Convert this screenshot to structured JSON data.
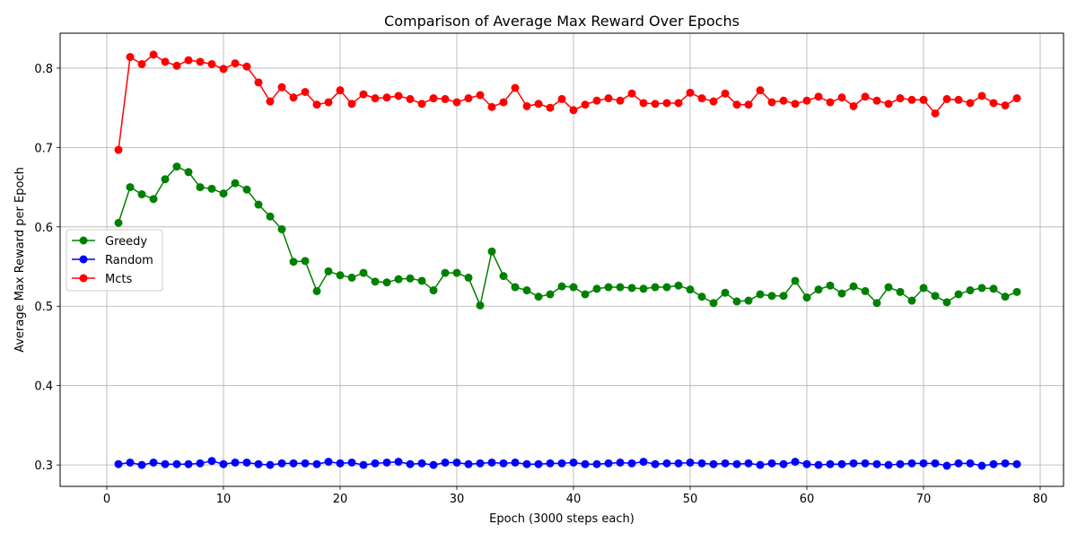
{
  "chart_data": {
    "type": "line",
    "title": "Comparison of Average Max Reward Over Epochs",
    "xlabel": "Epoch (3000 steps each)",
    "ylabel": "Average Max Reward per Epoch",
    "xlim": [
      -4,
      82
    ],
    "ylim": [
      0.273,
      0.844
    ],
    "xticks": [
      0,
      10,
      20,
      30,
      40,
      50,
      60,
      70,
      80
    ],
    "xtick_labels": [
      "0",
      "10",
      "20",
      "30",
      "40",
      "50",
      "60",
      "70",
      "80"
    ],
    "yticks": [
      0.3,
      0.4,
      0.5,
      0.6,
      0.7,
      0.8
    ],
    "ytick_labels": [
      "0.3",
      "0.4",
      "0.5",
      "0.6",
      "0.7",
      "0.8"
    ],
    "grid": true,
    "legend_position": "center-left",
    "x": [
      1,
      2,
      3,
      4,
      5,
      6,
      7,
      8,
      9,
      10,
      11,
      12,
      13,
      14,
      15,
      16,
      17,
      18,
      19,
      20,
      21,
      22,
      23,
      24,
      25,
      26,
      27,
      28,
      29,
      30,
      31,
      32,
      33,
      34,
      35,
      36,
      37,
      38,
      39,
      40,
      41,
      42,
      43,
      44,
      45,
      46,
      47,
      48,
      49,
      50,
      51,
      52,
      53,
      54,
      55,
      56,
      57,
      58,
      59,
      60,
      61,
      62,
      63,
      64,
      65,
      66,
      67,
      68,
      69,
      70,
      71,
      72,
      73,
      74,
      75,
      76,
      77,
      78
    ],
    "series": [
      {
        "name": "Greedy",
        "color": "#008000",
        "values": [
          0.605,
          0.65,
          0.641,
          0.635,
          0.66,
          0.676,
          0.669,
          0.65,
          0.648,
          0.642,
          0.655,
          0.647,
          0.628,
          0.613,
          0.597,
          0.556,
          0.557,
          0.519,
          0.544,
          0.539,
          0.536,
          0.542,
          0.531,
          0.53,
          0.534,
          0.535,
          0.532,
          0.52,
          0.542,
          0.542,
          0.536,
          0.501,
          0.569,
          0.538,
          0.524,
          0.52,
          0.512,
          0.515,
          0.525,
          0.524,
          0.515,
          0.522,
          0.524,
          0.524,
          0.523,
          0.522,
          0.524,
          0.524,
          0.526,
          0.521,
          0.512,
          0.504,
          0.517,
          0.506,
          0.507,
          0.515,
          0.513,
          0.513,
          0.532,
          0.511,
          0.521,
          0.526,
          0.516,
          0.525,
          0.519,
          0.504,
          0.524,
          0.518,
          0.507,
          0.523,
          0.513,
          0.505,
          0.515,
          0.52,
          0.523,
          0.522,
          0.512,
          0.518
        ]
      },
      {
        "name": "Random",
        "color": "#0000ff",
        "values": [
          0.301,
          0.303,
          0.3,
          0.303,
          0.301,
          0.301,
          0.301,
          0.302,
          0.305,
          0.301,
          0.303,
          0.303,
          0.301,
          0.3,
          0.302,
          0.302,
          0.302,
          0.301,
          0.304,
          0.302,
          0.303,
          0.3,
          0.302,
          0.303,
          0.304,
          0.301,
          0.302,
          0.3,
          0.303,
          0.303,
          0.301,
          0.302,
          0.303,
          0.302,
          0.303,
          0.301,
          0.301,
          0.302,
          0.302,
          0.303,
          0.301,
          0.301,
          0.302,
          0.303,
          0.302,
          0.304,
          0.301,
          0.302,
          0.302,
          0.303,
          0.302,
          0.301,
          0.302,
          0.301,
          0.302,
          0.3,
          0.302,
          0.301,
          0.304,
          0.301,
          0.3,
          0.301,
          0.301,
          0.302,
          0.302,
          0.301,
          0.3,
          0.301,
          0.302,
          0.302,
          0.302,
          0.299,
          0.302,
          0.302,
          0.299,
          0.301,
          0.302,
          0.301
        ]
      },
      {
        "name": "Mcts",
        "color": "#ff0000",
        "values": [
          0.697,
          0.814,
          0.805,
          0.817,
          0.808,
          0.803,
          0.81,
          0.808,
          0.805,
          0.799,
          0.806,
          0.802,
          0.782,
          0.758,
          0.776,
          0.763,
          0.77,
          0.754,
          0.757,
          0.772,
          0.755,
          0.767,
          0.762,
          0.763,
          0.765,
          0.761,
          0.755,
          0.762,
          0.761,
          0.757,
          0.762,
          0.766,
          0.751,
          0.757,
          0.775,
          0.752,
          0.755,
          0.75,
          0.761,
          0.747,
          0.754,
          0.759,
          0.762,
          0.759,
          0.768,
          0.756,
          0.755,
          0.756,
          0.756,
          0.769,
          0.762,
          0.758,
          0.768,
          0.754,
          0.754,
          0.772,
          0.757,
          0.759,
          0.755,
          0.759,
          0.764,
          0.757,
          0.763,
          0.752,
          0.764,
          0.759,
          0.755,
          0.762,
          0.76,
          0.76,
          0.743,
          0.761,
          0.76,
          0.756,
          0.765,
          0.756,
          0.753,
          0.762
        ]
      }
    ]
  }
}
